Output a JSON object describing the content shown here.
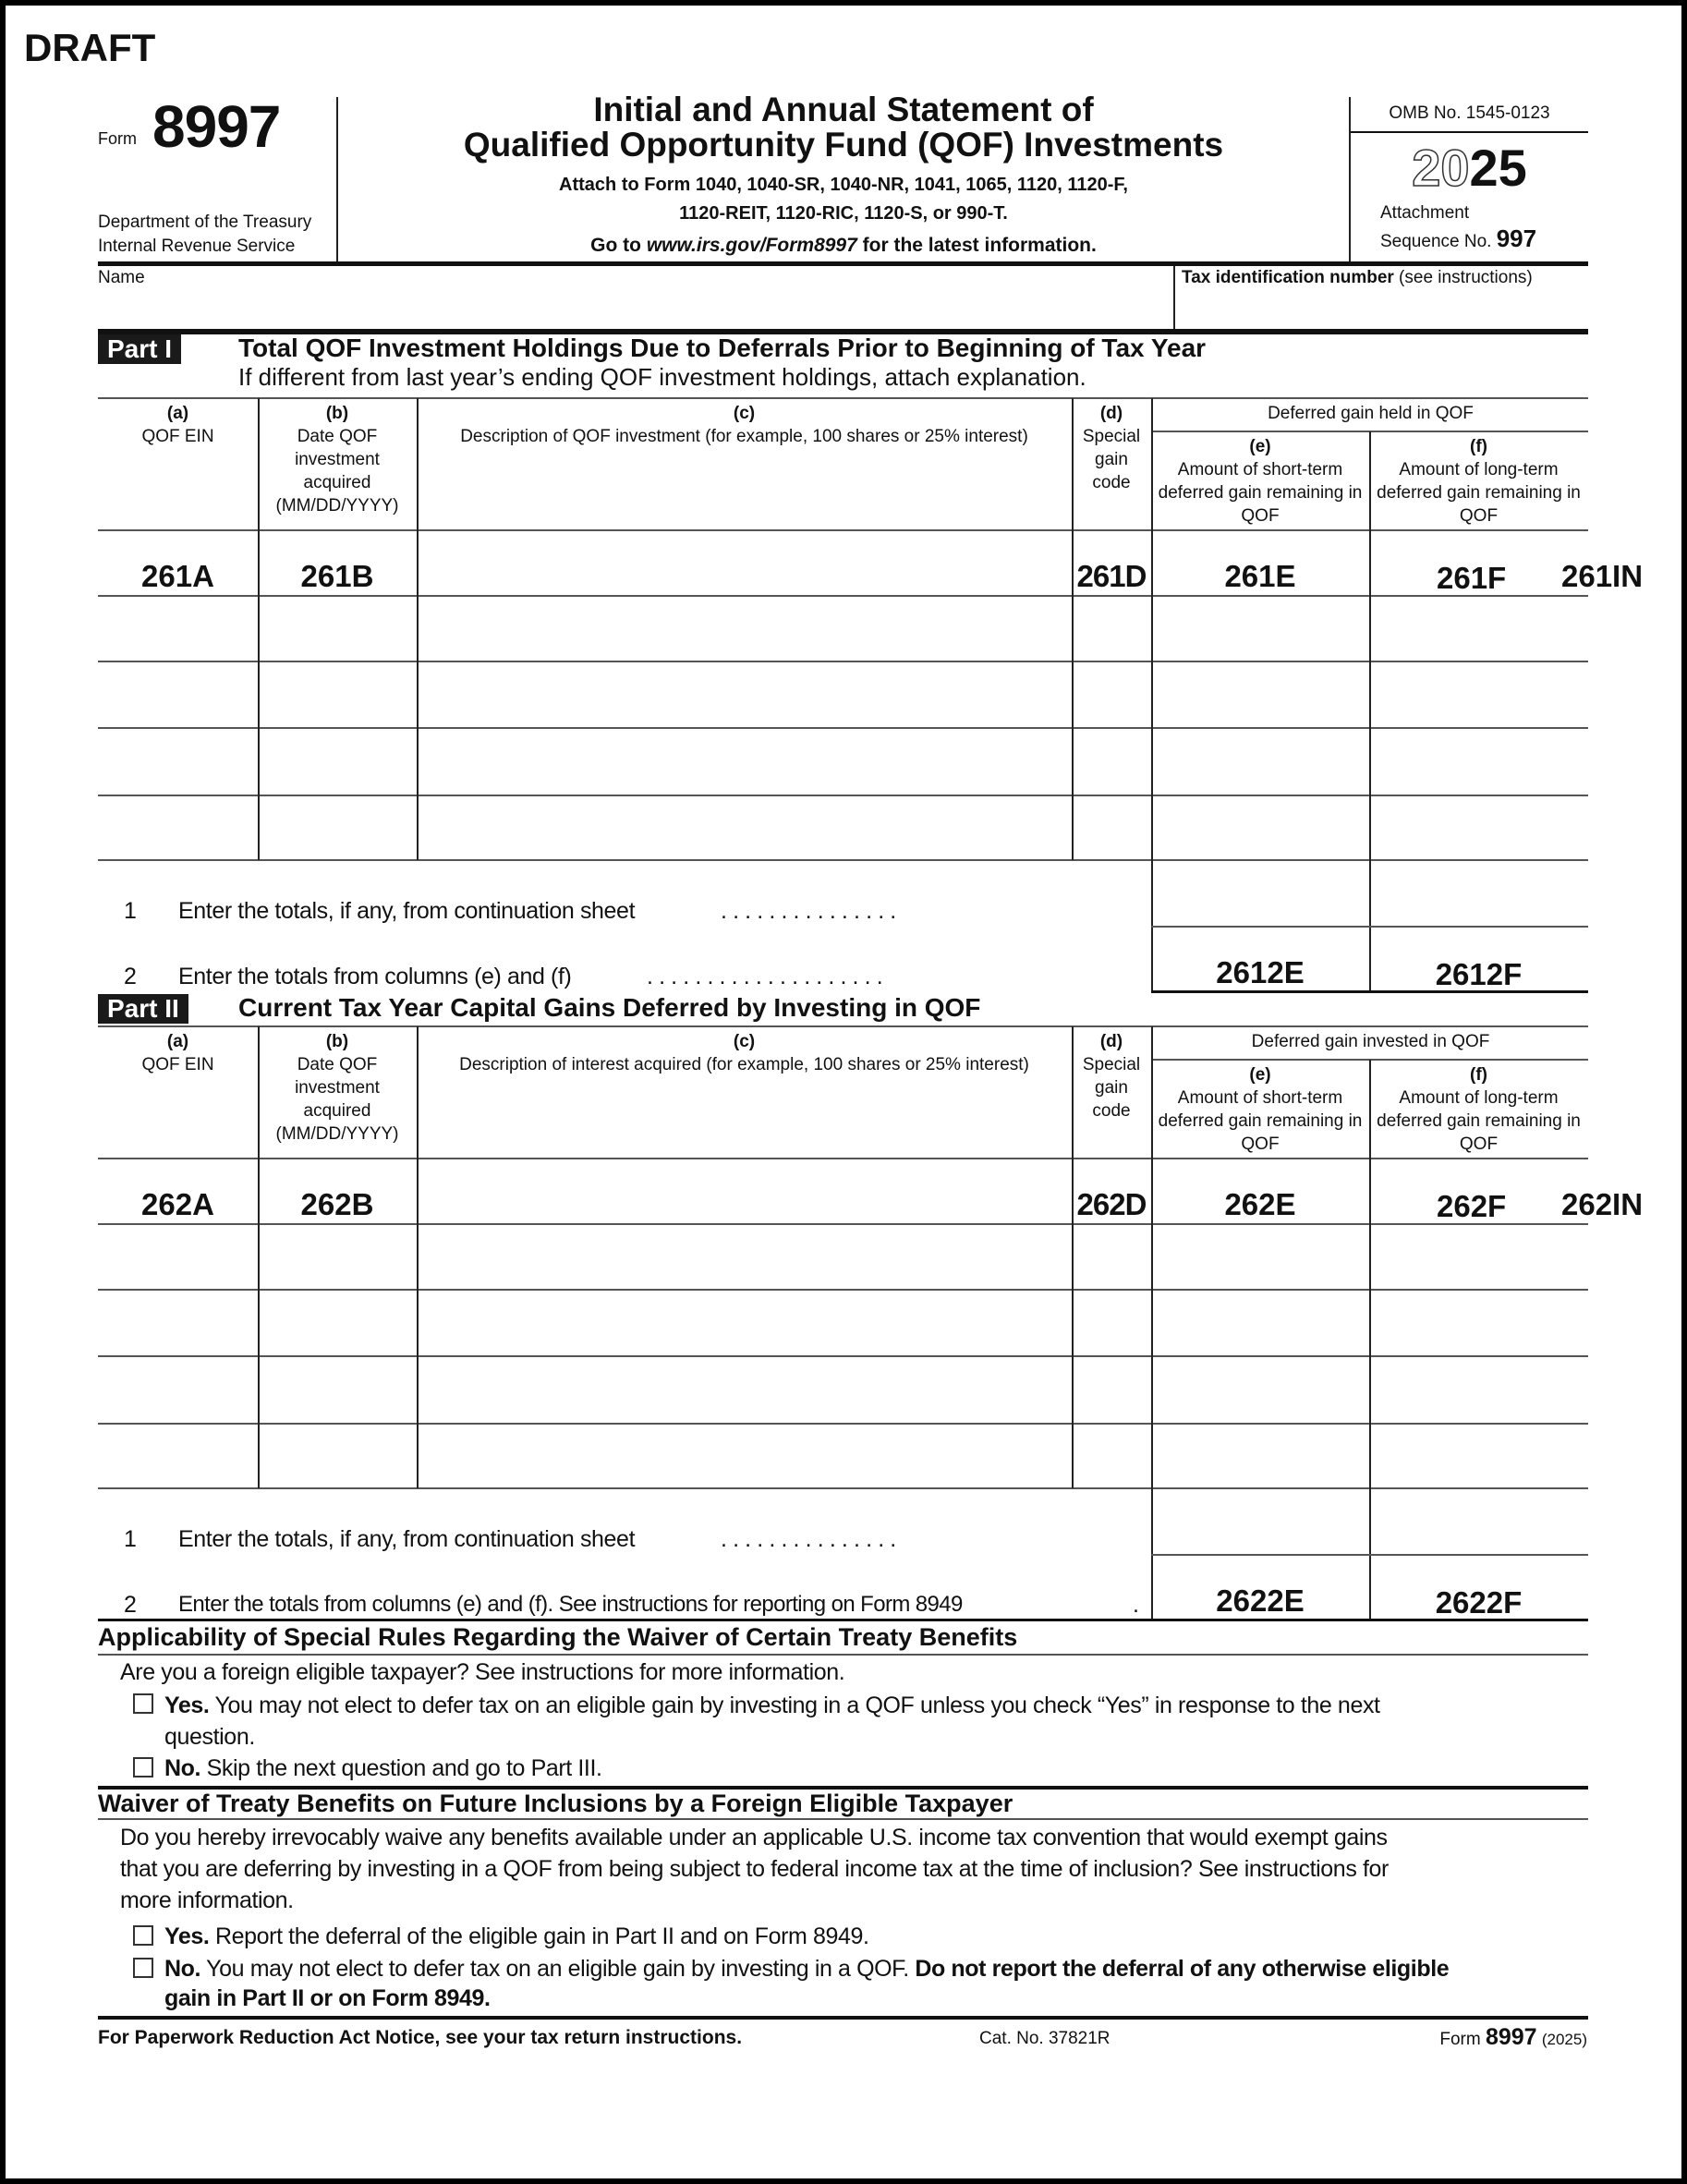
{
  "draft": "DRAFT",
  "header": {
    "form_label": "Form",
    "form_number": "8997",
    "dept_line1": "Department of the Treasury",
    "dept_line2": "Internal Revenue Service",
    "title_line1": "Initial and Annual Statement of",
    "title_line2": "Qualified Opportunity Fund (QOF) Investments",
    "attach_line1": "Attach to Form 1040, 1040-SR, 1040-NR, 1041, 1065, 1120, 1120-F,",
    "attach_line2": "1120-REIT, 1120-RIC, 1120-S, or 990-T.",
    "goto_prefix": "Go to ",
    "goto_url": "www.irs.gov/Form8997",
    "goto_suffix": " for the latest information.",
    "omb": "OMB No. 1545-0123",
    "year_outline": "20",
    "year_bold": "25",
    "attachment": "Attachment",
    "sequence_label": "Sequence No.",
    "sequence_number": "997"
  },
  "name_row": {
    "name_label": "Name",
    "tin_label_bold": "Tax identification number",
    "tin_label_rest": " (see instructions)"
  },
  "parts": [
    {
      "label": "Part I",
      "title": "Total QOF Investment Holdings Due to Deferrals Prior to Beginning of Tax Year",
      "subtitle": "If different from last year’s ending QOF investment holdings, attach explanation.",
      "group_header": "Deferred gain held in QOF",
      "columns": [
        {
          "letter": "(a)",
          "text": "QOF EIN"
        },
        {
          "letter": "(b)",
          "text": "Date QOF investment acquired (MM/DD/YYYY)"
        },
        {
          "letter": "(c)",
          "text": "Description of QOF investment (for example, 100 shares or 25% interest)"
        },
        {
          "letter": "(d)",
          "text": "Special gain code"
        },
        {
          "letter": "(e)",
          "text": "Amount of short-term deferred gain remaining in QOF"
        },
        {
          "letter": "(f)",
          "text": "Amount of long-term deferred gain remaining in QOF"
        }
      ],
      "field_codes": {
        "a": "261A",
        "b": "261B",
        "d": "261D",
        "e": "261E",
        "f": "261F",
        "in": "261IN"
      },
      "line1": {
        "num": "1",
        "text": "Enter the totals, if any, from continuation sheet",
        "dots": ". . . . . . . . . . . . . . ."
      },
      "line2": {
        "num": "2",
        "text": "Enter the totals from columns (e) and (f)",
        "dots": ". . . . . . . . . . . . . . . . . . . .",
        "code_e": "2612E",
        "code_f": "2612F"
      }
    },
    {
      "label": "Part II",
      "title": "Current Tax Year Capital Gains Deferred by Investing in QOF",
      "subtitle": "",
      "group_header": "Deferred gain invested in QOF",
      "columns": [
        {
          "letter": "(a)",
          "text": "QOF EIN"
        },
        {
          "letter": "(b)",
          "text": "Date QOF investment acquired (MM/DD/YYYY)"
        },
        {
          "letter": "(c)",
          "text": "Description of interest acquired (for example, 100 shares or 25% interest)"
        },
        {
          "letter": "(d)",
          "text": "Special gain code"
        },
        {
          "letter": "(e)",
          "text": "Amount of short-term deferred gain remaining in QOF"
        },
        {
          "letter": "(f)",
          "text": "Amount of long-term deferred gain remaining in QOF"
        }
      ],
      "field_codes": {
        "a": "262A",
        "b": "262B",
        "d": "262D",
        "e": "262E",
        "f": "262F",
        "in": "262IN"
      },
      "line1": {
        "num": "1",
        "text": "Enter the totals, if any, from continuation sheet",
        "dots": ". . . . . . . . . . . . . . ."
      },
      "line2": {
        "num": "2",
        "text": "Enter the totals from columns (e) and (f). See instructions for reporting on Form 8949",
        "dots": ".",
        "code_e": "2622E",
        "code_f": "2622F"
      }
    }
  ],
  "applicability": {
    "title": "Applicability of Special Rules Regarding the Waiver of Certain Treaty Benefits",
    "question": "Are you a foreign eligible taxpayer? See instructions for more information.",
    "yes_bold": "Yes.",
    "yes_text": " You may not elect to defer tax on an eligible gain by investing in a QOF unless you check “Yes” in response to the next",
    "yes_text2": "question.",
    "no_bold": "No.",
    "no_text": " Skip the next question and go to Part III."
  },
  "waiver": {
    "title": "Waiver of Treaty Benefits on Future Inclusions by a Foreign Eligible Taxpayer",
    "q1": "Do you hereby irrevocably waive any benefits available under an applicable U.S. income tax convention that would exempt gains",
    "q2": "that you are deferring by investing in a QOF from being subject to federal income tax at the time of inclusion? See instructions for",
    "q3": "more information.",
    "yes_bold": "Yes.",
    "yes_text": " Report the deferral of the eligible gain in Part II and on Form 8949.",
    "no_bold": "No.",
    "no_text": " You may not elect to defer tax on an eligible gain by investing in a QOF. ",
    "no_bold2": "Do not report the deferral of any otherwise eligible",
    "no_bold3": "gain in Part II or on Form 8949."
  },
  "footer": {
    "paperwork": "For Paperwork Reduction Act Notice, see your tax return instructions.",
    "cat": "Cat. No. 37821R",
    "form_label": "Form",
    "form_number": "8997",
    "year": "(2025)"
  }
}
